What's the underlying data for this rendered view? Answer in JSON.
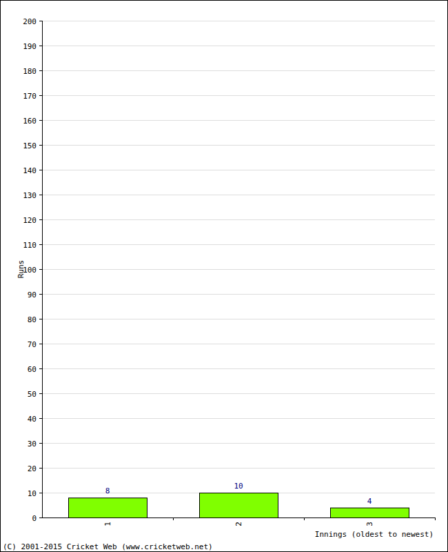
{
  "chart_data": {
    "type": "bar",
    "categories": [
      "1",
      "2",
      "3"
    ],
    "values": [
      8,
      10,
      4
    ],
    "color": "#80ff00",
    "x_label": "Innings (oldest to newest)",
    "y_label": "Runs",
    "annotations": [
      "(C) 2001-2015 Cricket Web (www.cricketweb.net)"
    ],
    "ylim": [
      0,
      200
    ],
    "yticks": [
      0,
      10,
      20,
      30,
      40,
      50,
      60,
      70,
      80,
      90,
      100,
      110,
      120,
      130,
      140,
      150,
      160,
      170,
      180,
      190,
      200
    ],
    "grid": true,
    "data_labels": true
  }
}
